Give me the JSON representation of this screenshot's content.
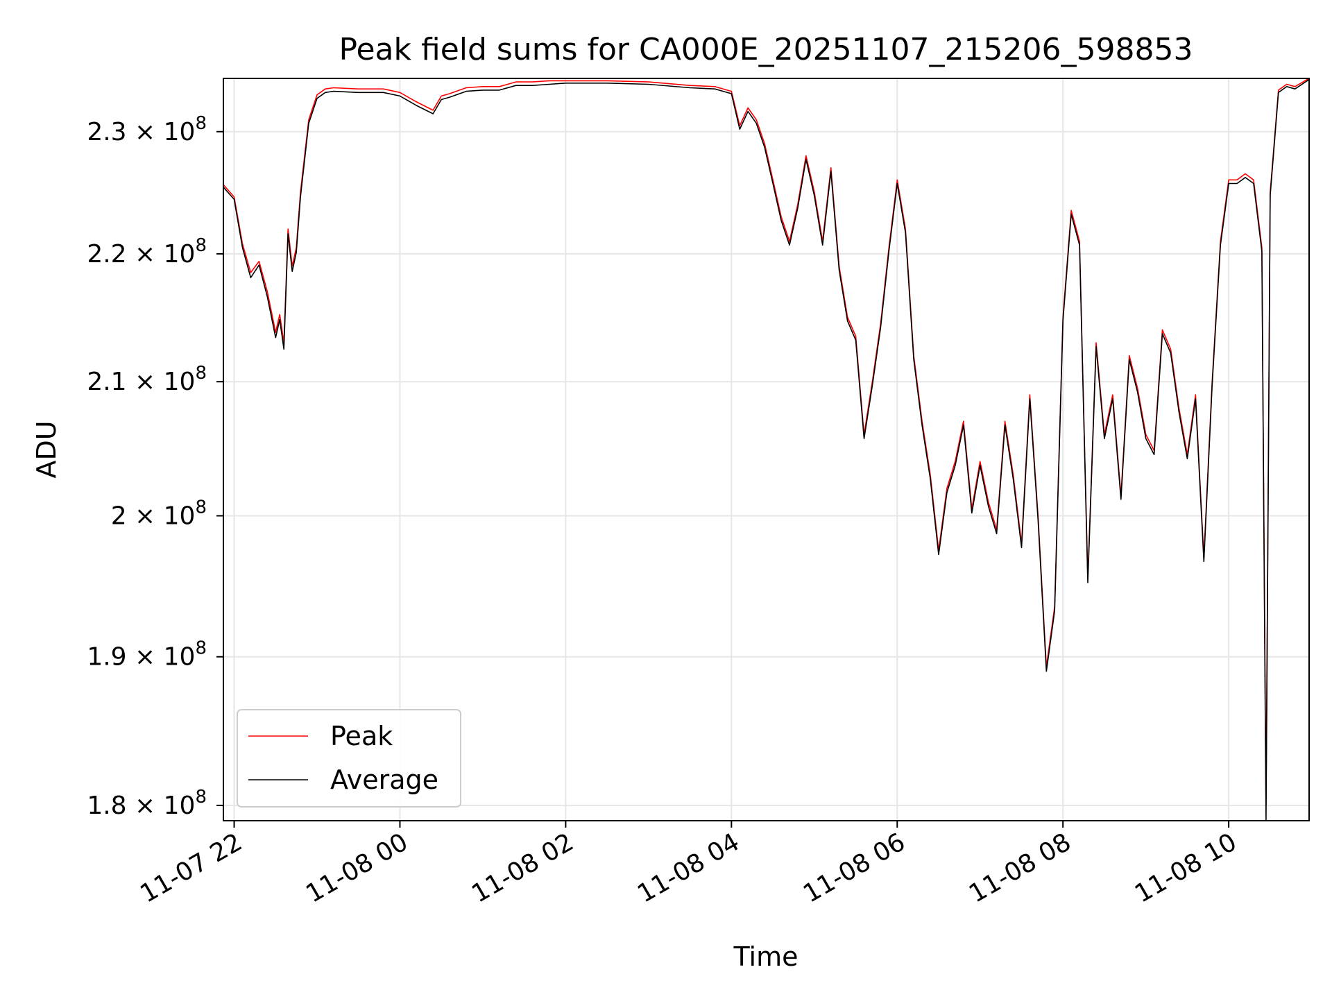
{
  "chart_data": {
    "type": "line",
    "title": "Peak field sums for CA000E_20251107_215206_598853",
    "xlabel": "Time",
    "ylabel": "ADU",
    "x_unit": "hours since 2025-11-07 00:00",
    "xlim": [
      21.87,
      34.97
    ],
    "ylim": [
      179000000.0,
      234500000.0
    ],
    "x_ticks": [
      {
        "value": 22,
        "label": "11-07 22"
      },
      {
        "value": 24,
        "label": "11-08 00"
      },
      {
        "value": 26,
        "label": "11-08 02"
      },
      {
        "value": 28,
        "label": "11-08 04"
      },
      {
        "value": 30,
        "label": "11-08 06"
      },
      {
        "value": 32,
        "label": "11-08 08"
      },
      {
        "value": 34,
        "label": "11-08 10"
      }
    ],
    "y_ticks": [
      {
        "value": 230000000.0,
        "label_mantissa": "2.3 × 10",
        "label_exp": "8"
      },
      {
        "value": 220000000.0,
        "label_mantissa": "2.2 × 10",
        "label_exp": "8"
      },
      {
        "value": 210000000.0,
        "label_mantissa": "2.1 × 10",
        "label_exp": "8"
      },
      {
        "value": 200000000.0,
        "label_mantissa": "2 × 10",
        "label_exp": "8"
      },
      {
        "value": 190000000.0,
        "label_mantissa": "1.9 × 10",
        "label_exp": "8"
      },
      {
        "value": 180000000.0,
        "label_mantissa": "1.8 × 10",
        "label_exp": "8"
      }
    ],
    "grid": true,
    "legend_position": "lower-left",
    "x": [
      21.87,
      22.0,
      22.1,
      22.2,
      22.3,
      22.4,
      22.5,
      22.55,
      22.6,
      22.65,
      22.7,
      22.75,
      22.8,
      22.9,
      23.0,
      23.1,
      23.2,
      23.5,
      23.8,
      24.0,
      24.2,
      24.4,
      24.5,
      24.6,
      24.8,
      25.0,
      25.2,
      25.4,
      25.6,
      25.8,
      26.0,
      26.5,
      27.0,
      27.5,
      27.8,
      28.0,
      28.1,
      28.2,
      28.3,
      28.4,
      28.5,
      28.6,
      28.7,
      28.8,
      28.9,
      29.0,
      29.1,
      29.2,
      29.3,
      29.4,
      29.5,
      29.6,
      29.7,
      29.8,
      29.9,
      30.0,
      30.1,
      30.2,
      30.3,
      30.4,
      30.5,
      30.6,
      30.7,
      30.8,
      30.9,
      31.0,
      31.1,
      31.2,
      31.3,
      31.4,
      31.5,
      31.6,
      31.7,
      31.8,
      31.9,
      32.0,
      32.1,
      32.2,
      32.3,
      32.4,
      32.5,
      32.6,
      32.7,
      32.8,
      32.9,
      33.0,
      33.1,
      33.2,
      33.3,
      33.4,
      33.5,
      33.6,
      33.7,
      33.8,
      33.9,
      34.0,
      34.1,
      34.2,
      34.3,
      34.4,
      34.45,
      34.5,
      34.6,
      34.7,
      34.8,
      34.97
    ],
    "series": [
      {
        "name": "Peak",
        "color": "#ff0000",
        "values": [
          225600000.0,
          224600000.0,
          220800000.0,
          218500000.0,
          219400000.0,
          217000000.0,
          213800000.0,
          215200000.0,
          213000000.0,
          222000000.0,
          219000000.0,
          220500000.0,
          225000000.0,
          231000000.0,
          233100000.0,
          233600000.0,
          233700000.0,
          233600000.0,
          233600000.0,
          233300000.0,
          232500000.0,
          231800000.0,
          233000000.0,
          233200000.0,
          233700000.0,
          233800000.0,
          233800000.0,
          234200000.0,
          234200000.0,
          234300000.0,
          234300000.0,
          234300000.0,
          234200000.0,
          233900000.0,
          233800000.0,
          233400000.0,
          230500000.0,
          232000000.0,
          231000000.0,
          229000000.0,
          226000000.0,
          223000000.0,
          221000000.0,
          224000000.0,
          228000000.0,
          225000000.0,
          221000000.0,
          227000000.0,
          219000000.0,
          215000000.0,
          213500000.0,
          206000000.0,
          210000000.0,
          214500000.0,
          220500000.0,
          226000000.0,
          222000000.0,
          212000000.0,
          207000000.0,
          203000000.0,
          197500000.0,
          202000000.0,
          204000000.0,
          207000000.0,
          200500000.0,
          204000000.0,
          201000000.0,
          199000000.0,
          207000000.0,
          203000000.0,
          198000000.0,
          209000000.0,
          200000000.0,
          189300000.0,
          193500000.0,
          215000000.0,
          223500000.0,
          221000000.0,
          195500000.0,
          213000000.0,
          206000000.0,
          209000000.0,
          201500000.0,
          212000000.0,
          209500000.0,
          206000000.0,
          204800000.0,
          214000000.0,
          212500000.0,
          208000000.0,
          204500000.0,
          209000000.0,
          197000000.0,
          210000000.0,
          221000000.0,
          226000000.0,
          226000000.0,
          226500000.0,
          226000000.0,
          220500000.0,
          180000000.0,
          225000000.0,
          233500000.0,
          234000000.0,
          233800000.0,
          234500000.0
        ]
      },
      {
        "name": "Average",
        "color": "#000000",
        "values": [
          225400000.0,
          224400000.0,
          220500000.0,
          218100000.0,
          219100000.0,
          216600000.0,
          213400000.0,
          214800000.0,
          212500000.0,
          221600000.0,
          218600000.0,
          220100000.0,
          224600000.0,
          230700000.0,
          232800000.0,
          233300000.0,
          233400000.0,
          233300000.0,
          233300000.0,
          233000000.0,
          232200000.0,
          231500000.0,
          232700000.0,
          232900000.0,
          233400000.0,
          233500000.0,
          233500000.0,
          233900000.0,
          233900000.0,
          234000000.0,
          234100000.0,
          234100000.0,
          234000000.0,
          233700000.0,
          233600000.0,
          233200000.0,
          230200000.0,
          231700000.0,
          230700000.0,
          228700000.0,
          225700000.0,
          222700000.0,
          220700000.0,
          223700000.0,
          227700000.0,
          224700000.0,
          220700000.0,
          226700000.0,
          218700000.0,
          214700000.0,
          213200000.0,
          205700000.0,
          209700000.0,
          214200000.0,
          220200000.0,
          225700000.0,
          221700000.0,
          211700000.0,
          206700000.0,
          202700000.0,
          197200000.0,
          201700000.0,
          203700000.0,
          206700000.0,
          200200000.0,
          203700000.0,
          200700000.0,
          198700000.0,
          206700000.0,
          202700000.0,
          197700000.0,
          208700000.0,
          199700000.0,
          189000000.0,
          193200000.0,
          214700000.0,
          223200000.0,
          220700000.0,
          195200000.0,
          212700000.0,
          205700000.0,
          208700000.0,
          201200000.0,
          211700000.0,
          209200000.0,
          205700000.0,
          204500000.0,
          213700000.0,
          212200000.0,
          207700000.0,
          204200000.0,
          208700000.0,
          196700000.0,
          209700000.0,
          220700000.0,
          225700000.0,
          225700000.0,
          226200000.0,
          225700000.0,
          220200000.0,
          179000000.0,
          224700000.0,
          233300000.0,
          233800000.0,
          233600000.0,
          234400000.0
        ]
      }
    ]
  }
}
